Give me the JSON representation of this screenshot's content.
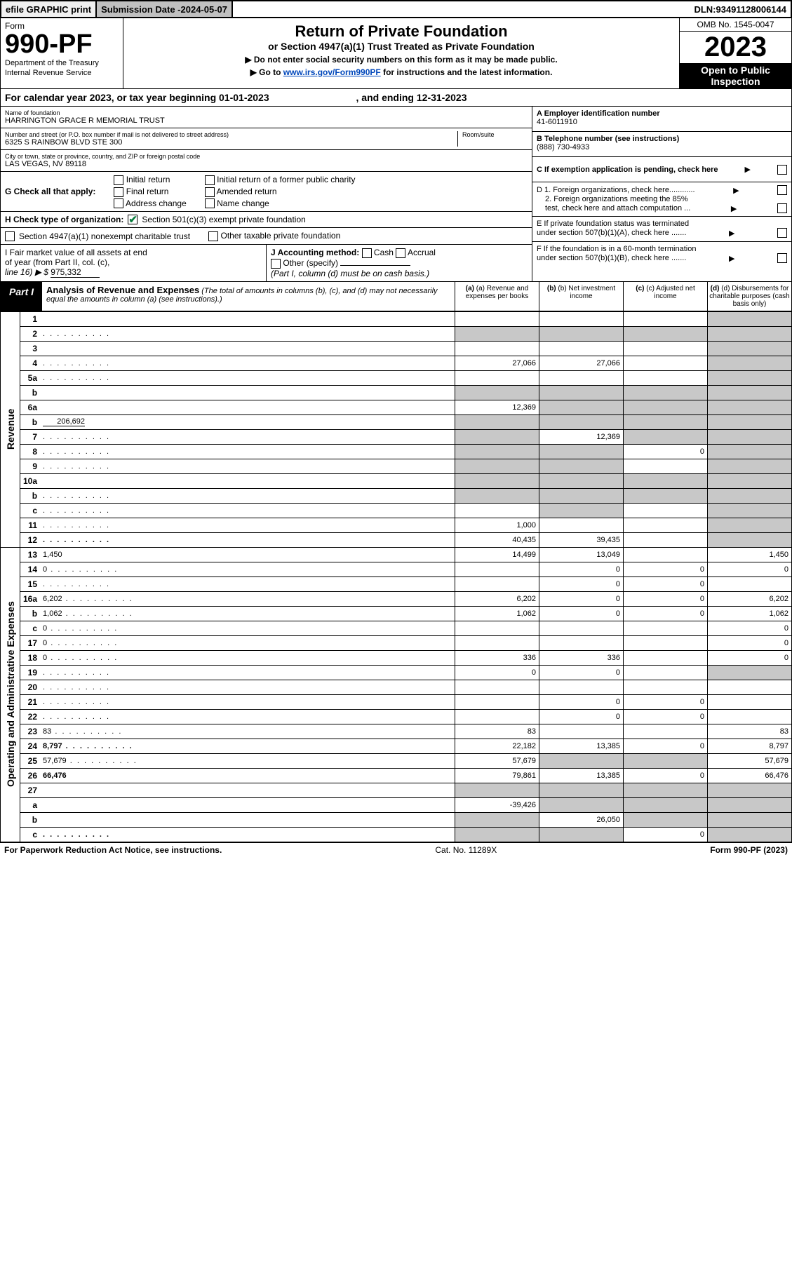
{
  "top_bar": {
    "efile": "efile GRAPHIC print",
    "sub_date_label": "Submission Date - ",
    "sub_date": "2024-05-07",
    "dln_label": "DLN: ",
    "dln": "93491128006144"
  },
  "header": {
    "form_word": "Form",
    "form_no": "990-PF",
    "dept1": "Department of the Treasury",
    "dept2": "Internal Revenue Service",
    "title": "Return of Private Foundation",
    "subtitle": "or Section 4947(a)(1) Trust Treated as Private Foundation",
    "note1": "▶ Do not enter social security numbers on this form as it may be made public.",
    "note2_pre": "▶ Go to ",
    "note2_link": "www.irs.gov/Form990PF",
    "note2_post": " for instructions and the latest information.",
    "omb": "OMB No. 1545-0047",
    "year": "2023",
    "open1": "Open to Public",
    "open2": "Inspection"
  },
  "cal_year": {
    "pre": "For calendar year 2023, or tax year beginning ",
    "begin": "01-01-2023",
    "mid": " , and ending ",
    "end": "12-31-2023"
  },
  "entity": {
    "name_label": "Name of foundation",
    "name": "HARRINGTON GRACE R MEMORIAL TRUST",
    "addr_label": "Number and street (or P.O. box number if mail is not delivered to street address)",
    "addr": "6325 S RAINBOW BLVD STE 300",
    "room_label": "Room/suite",
    "city_label": "City or town, state or province, country, and ZIP or foreign postal code",
    "city": "LAS VEGAS, NV  89118"
  },
  "right_info": {
    "A_label": "A Employer identification number",
    "A_val": "41-6011910",
    "B_label": "B Telephone number (see instructions)",
    "B_val": "(888) 730-4933",
    "C_label": "C If exemption application is pending, check here",
    "D1": "D 1. Foreign organizations, check here............",
    "D2a": "2. Foreign organizations meeting the 85%",
    "D2b": "test, check here and attach computation ...",
    "E1": "E  If private foundation status was terminated",
    "E2": "under section 507(b)(1)(A), check here .......",
    "F1": "F  If the foundation is in a 60-month termination",
    "F2": "under section 507(b)(1)(B), check here .......",
    "arrow": "▶"
  },
  "G": {
    "label": "G Check all that apply:",
    "opts": [
      "Initial return",
      "Final return",
      "Address change",
      "Initial return of a former public charity",
      "Amended return",
      "Name change"
    ]
  },
  "H": {
    "label": "H Check type of organization:",
    "opt1": "Section 501(c)(3) exempt private foundation",
    "opt2": "Section 4947(a)(1) nonexempt charitable trust",
    "opt3": "Other taxable private foundation"
  },
  "I": {
    "l1": "I Fair market value of all assets at end",
    "l2": "of year (from Part II, col. (c),",
    "l3": "line 16) ▶ $",
    "val": "975,332"
  },
  "J": {
    "label": "J Accounting method:",
    "cash": "Cash",
    "accrual": "Accrual",
    "other": "Other (specify)",
    "note": "(Part I, column (d) must be on cash basis.)"
  },
  "part1": {
    "label": "Part I",
    "title": "Analysis of Revenue and Expenses",
    "note": " (The total of amounts in columns (b), (c), and (d) may not necessarily equal the amounts in column (a) (see instructions).)",
    "cols": {
      "a": "(a) Revenue and expenses per books",
      "b": "(b) Net investment income",
      "c": "(c) Adjusted net income",
      "d": "(d) Disbursements for charitable purposes (cash basis only)"
    }
  },
  "sidebars": {
    "rev": "Revenue",
    "exp": "Operating and Administrative Expenses"
  },
  "rows": [
    {
      "n": "1",
      "d": "",
      "a": "",
      "b": "",
      "c": "",
      "shade": [
        "d"
      ]
    },
    {
      "n": "2",
      "d": "",
      "dots": true,
      "a": "",
      "b": "",
      "c": "",
      "shade": [
        "a",
        "b",
        "c",
        "d"
      ],
      "bold_not": true
    },
    {
      "n": "3",
      "d": "",
      "a": "",
      "b": "",
      "c": "",
      "shade": [
        "d"
      ]
    },
    {
      "n": "4",
      "d": "",
      "dots": true,
      "a": "27,066",
      "b": "27,066",
      "c": "",
      "shade": [
        "d"
      ]
    },
    {
      "n": "5a",
      "d": "",
      "dots": true,
      "a": "",
      "b": "",
      "c": "",
      "shade": [
        "d"
      ]
    },
    {
      "n": "b",
      "d": "",
      "sub": true,
      "a": "",
      "b": "",
      "c": "",
      "shade": [
        "a",
        "b",
        "c",
        "d"
      ]
    },
    {
      "n": "6a",
      "d": "",
      "a": "12,369",
      "b": "",
      "c": "",
      "shade": [
        "b",
        "c",
        "d"
      ]
    },
    {
      "n": "b",
      "d": "",
      "sub": true,
      "inline_val": "206,692",
      "a": "",
      "b": "",
      "c": "",
      "shade": [
        "a",
        "b",
        "c",
        "d"
      ]
    },
    {
      "n": "7",
      "d": "",
      "dots": true,
      "a": "",
      "b": "12,369",
      "c": "",
      "shade": [
        "a",
        "c",
        "d"
      ]
    },
    {
      "n": "8",
      "d": "",
      "dots": true,
      "a": "",
      "b": "",
      "c": "0",
      "shade": [
        "a",
        "b",
        "d"
      ]
    },
    {
      "n": "9",
      "d": "",
      "dots": true,
      "a": "",
      "b": "",
      "c": "",
      "shade": [
        "a",
        "b",
        "d"
      ]
    },
    {
      "n": "10a",
      "d": "",
      "sub": true,
      "a": "",
      "b": "",
      "c": "",
      "shade": [
        "a",
        "b",
        "c",
        "d"
      ]
    },
    {
      "n": "b",
      "d": "",
      "dots": true,
      "sub": true,
      "a": "",
      "b": "",
      "c": "",
      "shade": [
        "a",
        "b",
        "c",
        "d"
      ]
    },
    {
      "n": "c",
      "d": "",
      "dots": true,
      "a": "",
      "b": "",
      "c": "",
      "shade": [
        "b",
        "d"
      ]
    },
    {
      "n": "11",
      "d": "",
      "dots": true,
      "a": "1,000",
      "b": "",
      "c": "",
      "shade": [
        "d"
      ]
    },
    {
      "n": "12",
      "d": "",
      "dots": true,
      "bold": true,
      "a": "40,435",
      "b": "39,435",
      "c": "",
      "shade": [
        "d"
      ]
    },
    {
      "n": "13",
      "d": "1,450",
      "a": "14,499",
      "b": "13,049",
      "c": ""
    },
    {
      "n": "14",
      "d": "0",
      "dots": true,
      "a": "",
      "b": "0",
      "c": "0"
    },
    {
      "n": "15",
      "d": "",
      "dots": true,
      "a": "",
      "b": "0",
      "c": "0"
    },
    {
      "n": "16a",
      "d": "6,202",
      "dots": true,
      "a": "6,202",
      "b": "0",
      "c": "0"
    },
    {
      "n": "b",
      "d": "1,062",
      "dots": true,
      "a": "1,062",
      "b": "0",
      "c": "0"
    },
    {
      "n": "c",
      "d": "0",
      "dots": true,
      "a": "",
      "b": "",
      "c": ""
    },
    {
      "n": "17",
      "d": "0",
      "dots": true,
      "a": "",
      "b": "",
      "c": ""
    },
    {
      "n": "18",
      "d": "0",
      "dots": true,
      "a": "336",
      "b": "336",
      "c": ""
    },
    {
      "n": "19",
      "d": "",
      "dots": true,
      "a": "0",
      "b": "0",
      "c": "",
      "shade": [
        "d"
      ]
    },
    {
      "n": "20",
      "d": "",
      "dots": true,
      "a": "",
      "b": "",
      "c": ""
    },
    {
      "n": "21",
      "d": "",
      "dots": true,
      "a": "",
      "b": "0",
      "c": "0"
    },
    {
      "n": "22",
      "d": "",
      "dots": true,
      "a": "",
      "b": "0",
      "c": "0"
    },
    {
      "n": "23",
      "d": "83",
      "dots": true,
      "a": "83",
      "b": "",
      "c": ""
    },
    {
      "n": "24",
      "d": "8,797",
      "dots": true,
      "bold": true,
      "a": "22,182",
      "b": "13,385",
      "c": "0"
    },
    {
      "n": "25",
      "d": "57,679",
      "dots": true,
      "a": "57,679",
      "b": "",
      "c": "",
      "shade": [
        "b",
        "c"
      ]
    },
    {
      "n": "26",
      "d": "66,476",
      "bold": true,
      "a": "79,861",
      "b": "13,385",
      "c": "0"
    },
    {
      "n": "27",
      "d": "",
      "a": "",
      "b": "",
      "c": "",
      "shade": [
        "a",
        "b",
        "c",
        "d"
      ]
    },
    {
      "n": "a",
      "d": "",
      "bold": true,
      "a": "-39,426",
      "b": "",
      "c": "",
      "shade": [
        "b",
        "c",
        "d"
      ]
    },
    {
      "n": "b",
      "d": "",
      "bold": true,
      "a": "",
      "b": "26,050",
      "c": "",
      "shade": [
        "a",
        "c",
        "d"
      ]
    },
    {
      "n": "c",
      "d": "",
      "dots": true,
      "bold": true,
      "a": "",
      "b": "",
      "c": "0",
      "shade": [
        "a",
        "b",
        "d"
      ]
    }
  ],
  "footer": {
    "left": "For Paperwork Reduction Act Notice, see instructions.",
    "mid": "Cat. No. 11289X",
    "right": "Form 990-PF (2023)"
  },
  "colors": {
    "link": "#0047bb",
    "check_green": "#0a7d3f",
    "shade_gray": "#c8c8c8",
    "header_gray": "#c0c0c0"
  }
}
